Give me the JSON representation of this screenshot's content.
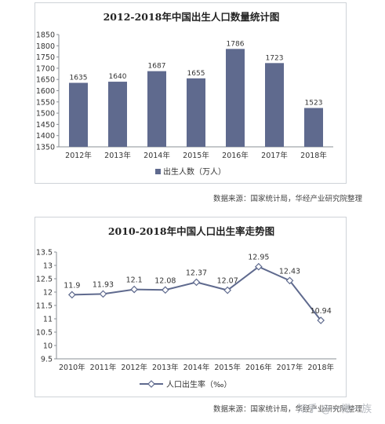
{
  "chart_data": [
    {
      "type": "bar",
      "title": "2012-2018年中国出生人口数量统计图",
      "categories": [
        "2012年",
        "2013年",
        "2014年",
        "2015年",
        "2016年",
        "2017年",
        "2018年"
      ],
      "series": [
        {
          "name": "出生人数（万人）",
          "values": [
            1635,
            1640,
            1687,
            1655,
            1786,
            1723,
            1523
          ]
        }
      ],
      "data_labels": [
        "1635",
        "1640",
        "1687",
        "1655",
        "1786",
        "1723",
        "1523"
      ],
      "ylim": [
        1350,
        1850
      ],
      "yticks": [
        1350,
        1400,
        1450,
        1500,
        1550,
        1600,
        1650,
        1700,
        1750,
        1800,
        1850
      ],
      "ytick_labels": [
        "1350",
        "1400",
        "1450",
        "1500",
        "1550",
        "1600",
        "1650",
        "1700",
        "1750",
        "1800",
        "1850"
      ],
      "grid": false,
      "legend_position": "bottom",
      "bar_color": "#5f6a8e"
    },
    {
      "type": "line",
      "title": "2010-2018年中国人口出生率走势图",
      "categories": [
        "2010年",
        "2011年",
        "2012年",
        "2013年",
        "2014年",
        "2015年",
        "2016年",
        "2017年",
        "2018年"
      ],
      "series": [
        {
          "name": "人口出生率（‰）",
          "values": [
            11.9,
            11.93,
            12.1,
            12.08,
            12.37,
            12.07,
            12.95,
            12.43,
            10.94
          ]
        }
      ],
      "data_labels": [
        "11.9",
        "11.93",
        "12.1",
        "12.08",
        "12.37",
        "12.07",
        "12.95",
        "12.43",
        "10.94"
      ],
      "ylim": [
        9.5,
        13.5
      ],
      "yticks": [
        9.5,
        10,
        10.5,
        11,
        11.5,
        12,
        12.5,
        13,
        13.5
      ],
      "ytick_labels": [
        "9.5",
        "10",
        "10.5",
        "11",
        "11.5",
        "12",
        "12.5",
        "13",
        "13.5"
      ],
      "grid": false,
      "legend_position": "bottom",
      "line_color": "#5f6a8e"
    }
  ],
  "sources": {
    "bar": "数据来源：国家统计局，华经产业研究院整理",
    "line": "数据来源：国家统计局，华经产业研究院整理"
  },
  "watermark": "知乎 @一橄一族"
}
